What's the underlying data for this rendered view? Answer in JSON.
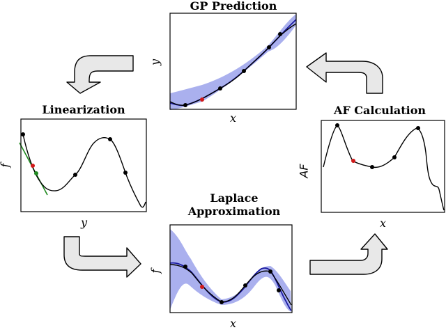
{
  "panels": {
    "gp_prediction": {
      "title": "GP Prediction",
      "xlabel": "x",
      "ylabel": "y"
    },
    "linearization": {
      "title": "Linearization",
      "xlabel": "y",
      "ylabel": "f"
    },
    "af_calculation": {
      "title": "AF Calculation",
      "xlabel": "x",
      "ylabel": "AF"
    },
    "laplace_approximation": {
      "title_line1": "Laplace",
      "title_line2": "Approximation",
      "xlabel": "x",
      "ylabel": "f"
    }
  },
  "colors": {
    "arrow_fill": "#e8e8e8",
    "band_fill": "#aab0ee",
    "mean_line": "#1a1aa0",
    "tangent": "#1f8a1f",
    "point": "#000000",
    "highlight_point": "#d11a1a"
  },
  "icons": [
    "curved-arrow-down",
    "curved-arrow-left",
    "curved-arrow-right",
    "curved-arrow-up"
  ]
}
